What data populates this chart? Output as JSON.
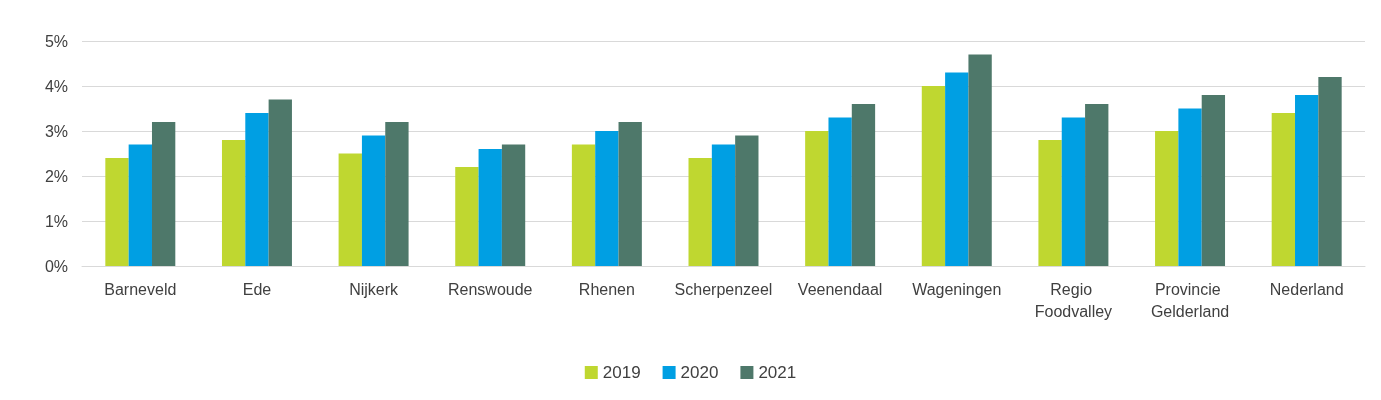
{
  "chart_data": {
    "type": "bar",
    "categories": [
      "Barneveld",
      "Ede",
      "Nijkerk",
      "Renswoude",
      "Rhenen",
      "Scherpenzeel",
      "Veenendaal",
      "Wageningen",
      "Regio Foodvalley",
      "Provincie Gelderland",
      "Nederland"
    ],
    "series": [
      {
        "name": "2019",
        "color": "#bfd730",
        "values": [
          2.4,
          2.8,
          2.5,
          2.2,
          2.7,
          2.4,
          3.0,
          4.0,
          2.8,
          3.0,
          3.4
        ]
      },
      {
        "name": "2020",
        "color": "#009fe3",
        "values": [
          2.7,
          3.4,
          2.9,
          2.6,
          3.0,
          2.7,
          3.3,
          4.3,
          3.3,
          3.5,
          3.8
        ]
      },
      {
        "name": "2021",
        "color": "#4e786a",
        "values": [
          3.2,
          3.7,
          3.2,
          2.7,
          3.2,
          2.9,
          3.6,
          4.7,
          3.6,
          3.8,
          4.2
        ]
      }
    ],
    "ylim": [
      0,
      5
    ],
    "yticks": [
      {
        "value": 0,
        "label": "0%"
      },
      {
        "value": 1,
        "label": "1%"
      },
      {
        "value": 2,
        "label": "2%"
      },
      {
        "value": 3,
        "label": "3%"
      },
      {
        "value": 4,
        "label": "4%"
      },
      {
        "value": 5,
        "label": "5%"
      }
    ],
    "grid": "y",
    "legend": "bottom"
  }
}
